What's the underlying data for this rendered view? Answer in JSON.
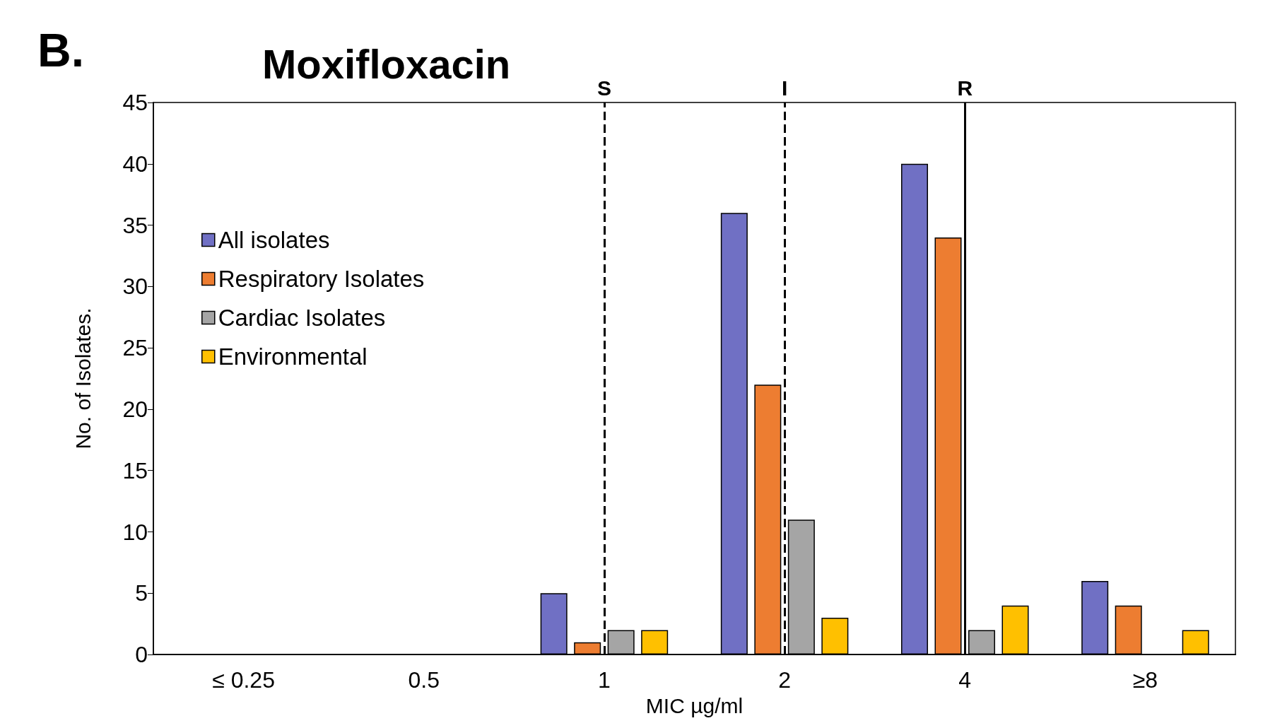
{
  "chart_data": {
    "type": "bar",
    "title": "Moxifloxacin",
    "xlabel": "MIC µg/ml",
    "ylabel": "No. of Isolates.",
    "annotations": [
      "B."
    ],
    "categories": [
      "≤ 0.25",
      "0.5",
      "1",
      "2",
      "4",
      "≥8"
    ],
    "series": [
      {
        "name": "All isolates",
        "color": "#7070c4",
        "values": [
          0,
          0,
          5,
          36,
          40,
          6
        ]
      },
      {
        "name": "Respiratory Isolates",
        "color": "#ed7d31",
        "values": [
          0,
          0,
          1,
          22,
          34,
          4
        ]
      },
      {
        "name": "Cardiac Isolates",
        "color": "#a5a5a5",
        "values": [
          0,
          0,
          2,
          11,
          2,
          0
        ]
      },
      {
        "name": "Environmental",
        "color": "#ffc000",
        "values": [
          0,
          0,
          2,
          3,
          4,
          2
        ]
      }
    ],
    "ylim": [
      0,
      45
    ],
    "yticks": [
      0,
      5,
      10,
      15,
      20,
      25,
      30,
      35,
      40,
      45
    ],
    "ref_lines": [
      {
        "axis": "x",
        "value": "1",
        "label": "S",
        "color": "#000000",
        "line_style": "dashed"
      },
      {
        "axis": "x",
        "value": "2",
        "label": "I",
        "color": "#000000",
        "line_style": "dashed"
      },
      {
        "axis": "x",
        "value": "4",
        "label": "R",
        "color": "#000000",
        "line_style": "solid"
      }
    ],
    "grid": false,
    "legend": "top left"
  }
}
